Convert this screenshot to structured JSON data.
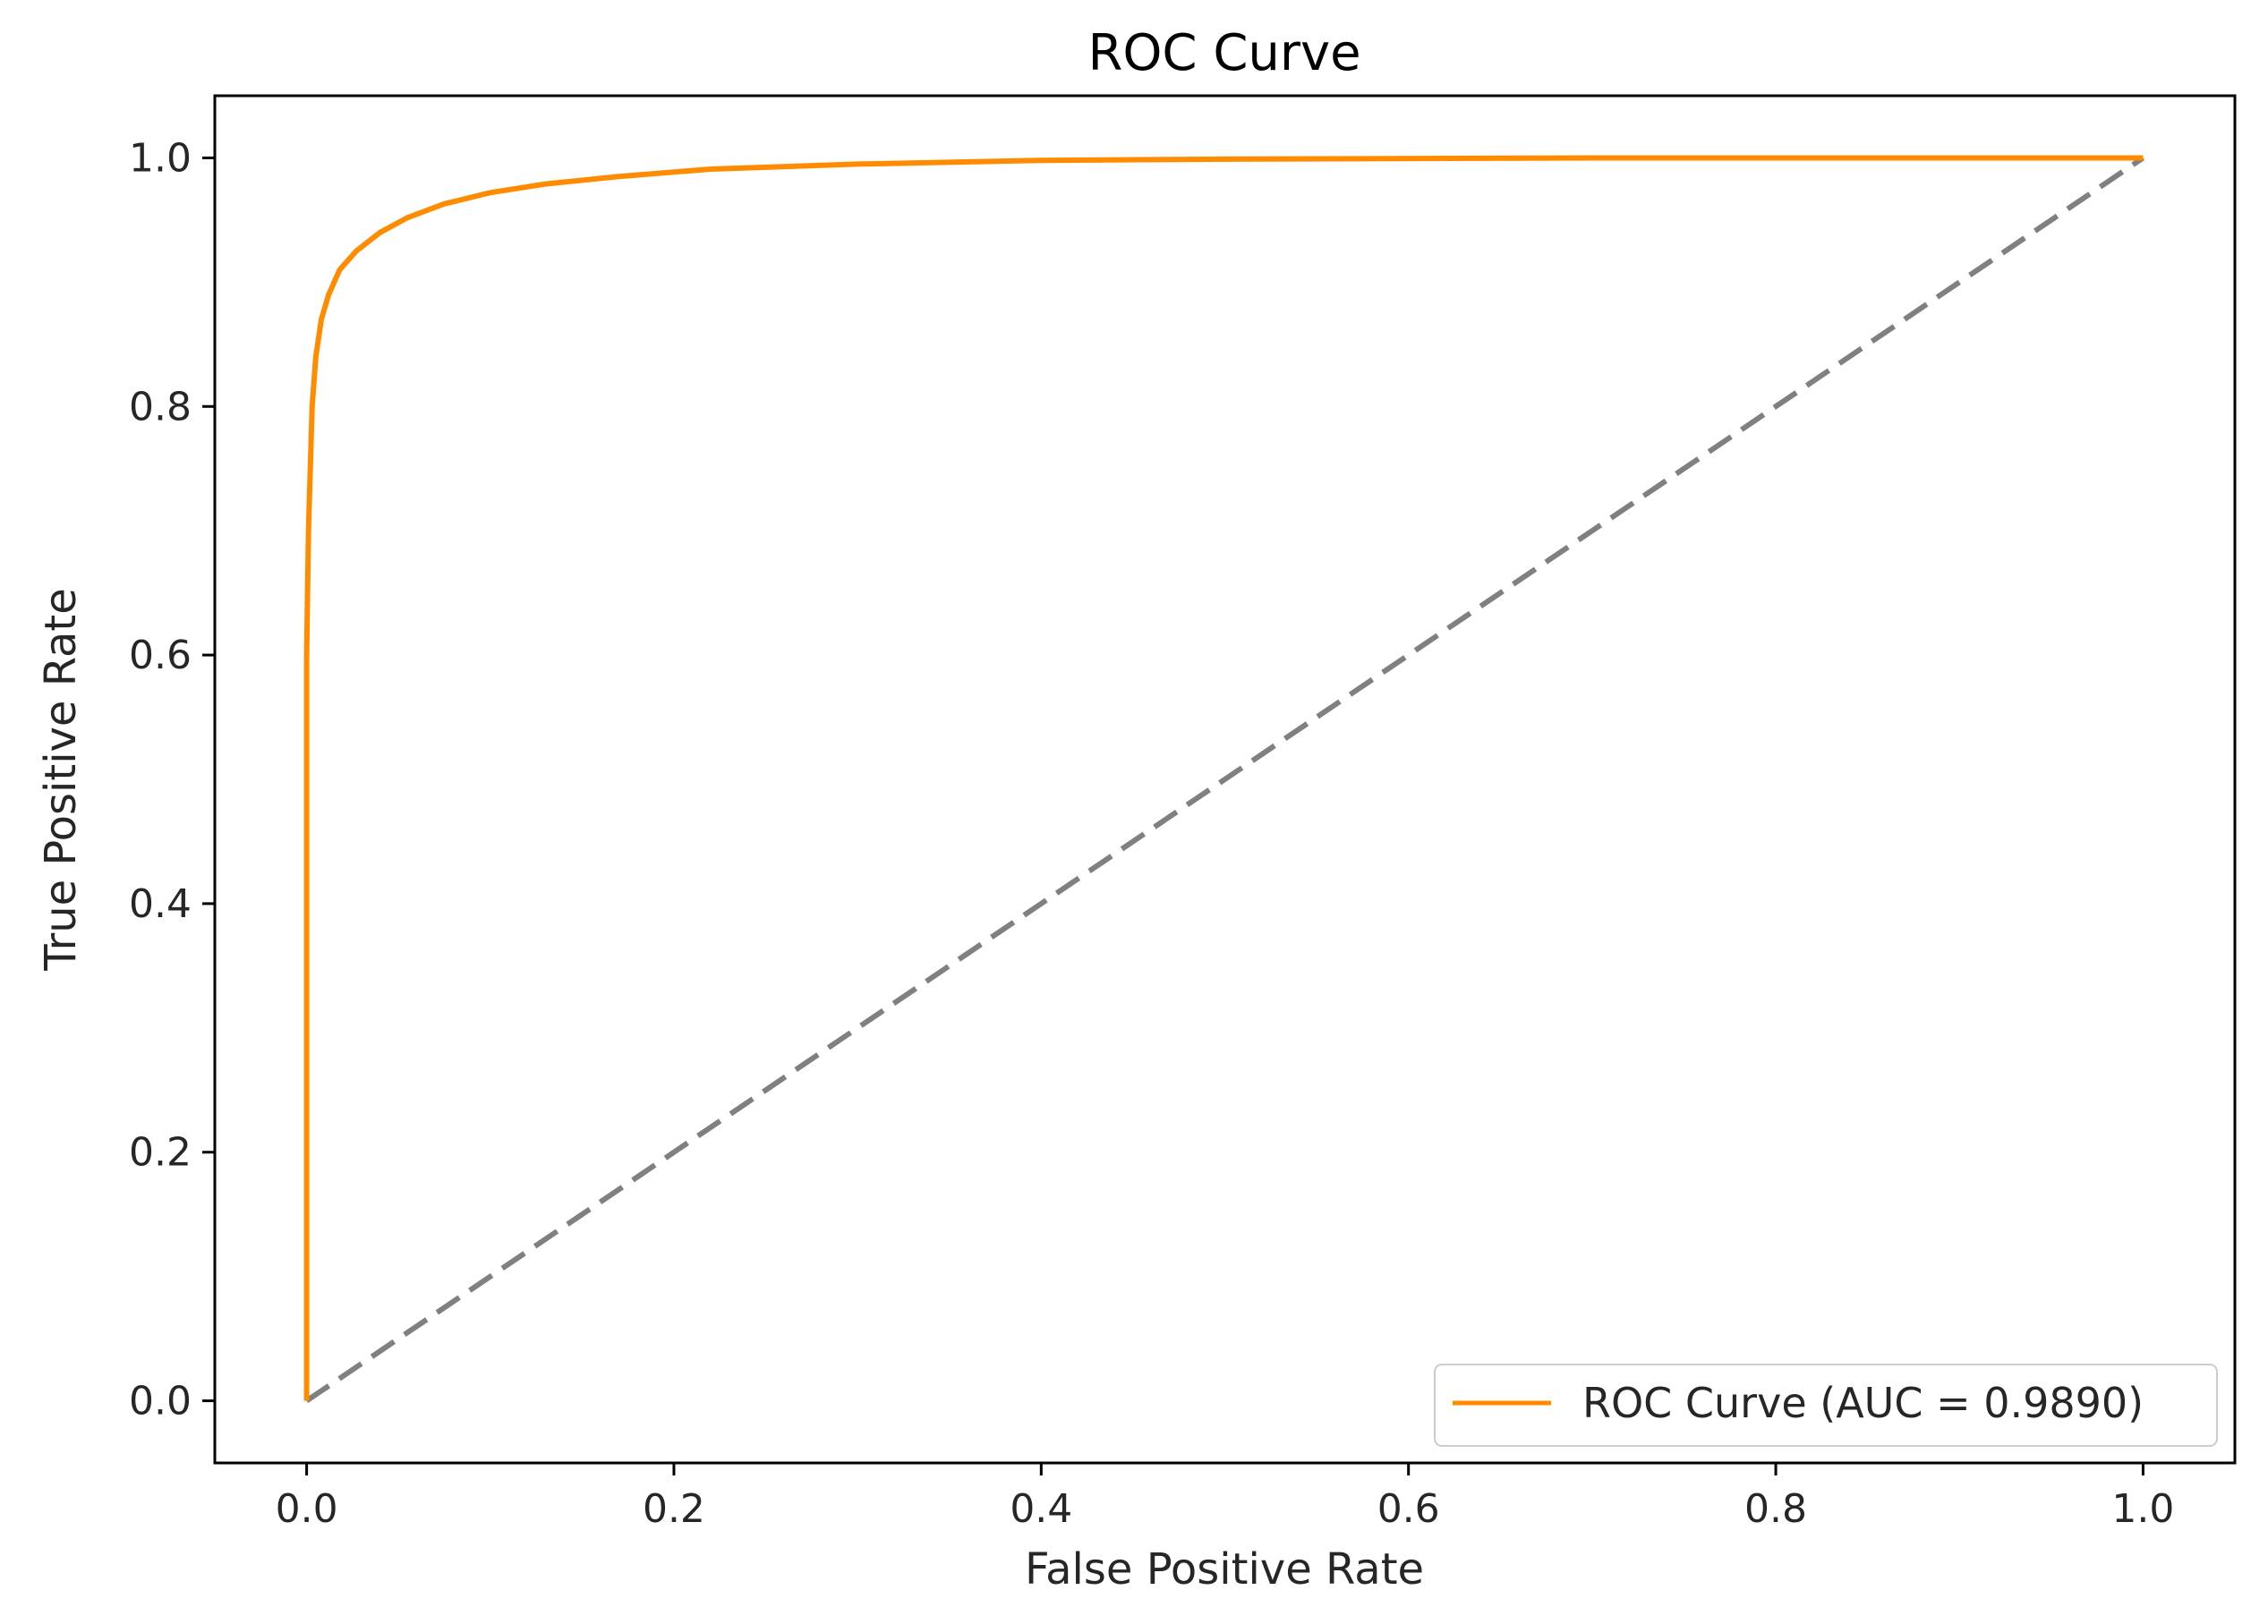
{
  "chart_data": {
    "type": "line",
    "title": "ROC Curve",
    "xlabel": "False Positive Rate",
    "ylabel": "True Positive Rate",
    "xlim": [
      -0.05,
      1.05
    ],
    "ylim": [
      -0.05,
      1.05
    ],
    "xticks": [
      "0.0",
      "0.2",
      "0.4",
      "0.6",
      "0.8",
      "1.0"
    ],
    "yticks": [
      "0.0",
      "0.2",
      "0.4",
      "0.6",
      "0.8",
      "1.0"
    ],
    "grid": false,
    "legend_position": "lower-right",
    "series": [
      {
        "name": "ROC Curve (AUC = 0.9890)",
        "color": "#ff8c00",
        "style": "solid",
        "x": [
          0.0,
          0.0,
          0.001,
          0.002,
          0.003,
          0.005,
          0.008,
          0.012,
          0.018,
          0.027,
          0.04,
          0.055,
          0.075,
          0.1,
          0.13,
          0.17,
          0.22,
          0.3,
          0.4,
          0.5,
          0.7,
          1.0
        ],
        "y": [
          0.0,
          0.6,
          0.7,
          0.75,
          0.8,
          0.84,
          0.87,
          0.89,
          0.91,
          0.925,
          0.94,
          0.952,
          0.963,
          0.972,
          0.979,
          0.985,
          0.991,
          0.995,
          0.998,
          0.999,
          1.0,
          1.0
        ]
      },
      {
        "name": "",
        "color": "#808080",
        "style": "dashed",
        "x": [
          0.0,
          1.0
        ],
        "y": [
          0.0,
          1.0
        ]
      }
    ]
  }
}
